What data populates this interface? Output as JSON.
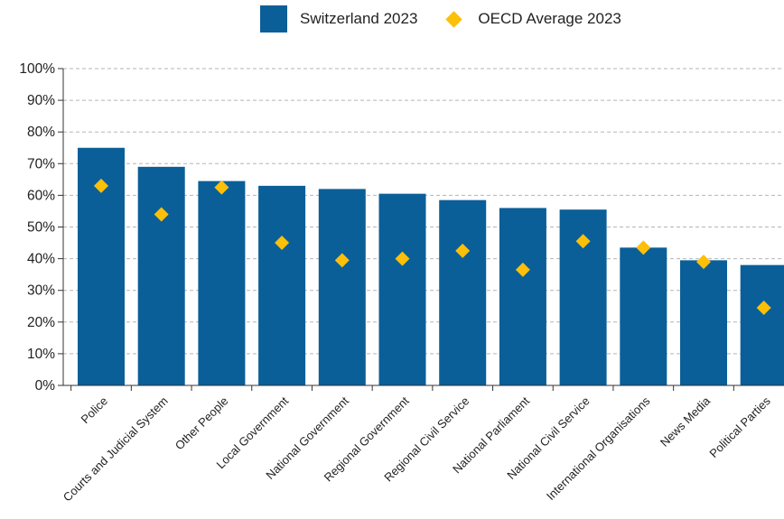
{
  "colors": {
    "bar": "#0a5f99",
    "marker": "#fcbf0a",
    "grid": "#b5b5b5",
    "axis": "#333333"
  },
  "legend": {
    "items": [
      {
        "label": "Switzerland 2023",
        "shape": "square"
      },
      {
        "label": "OECD Average 2023",
        "shape": "diamond"
      }
    ]
  },
  "chart_data": {
    "type": "bar",
    "legend_position": "top",
    "grid": true,
    "ylim": [
      0,
      100
    ],
    "y_ticks": [
      0,
      10,
      20,
      30,
      40,
      50,
      60,
      70,
      80,
      90,
      100
    ],
    "y_tick_labels": [
      "0%",
      "10%",
      "20%",
      "30%",
      "40%",
      "50%",
      "60%",
      "70%",
      "80%",
      "90%",
      "100%"
    ],
    "categories": [
      "Police",
      "Courts and Judicial System",
      "Other People",
      "Local Government",
      "National Government",
      "Regional Government",
      "Regional Civil Service",
      "National Parliament",
      "National Civil Service",
      "International Organisations",
      "News Media",
      "Political Parties"
    ],
    "series": [
      {
        "name": "Switzerland 2023",
        "kind": "bar",
        "values": [
          75,
          69,
          64.5,
          63,
          62,
          60.5,
          58.5,
          56,
          55.5,
          43.5,
          39.5,
          38
        ]
      },
      {
        "name": "OECD Average 2023",
        "kind": "marker",
        "values": [
          63,
          54,
          62.5,
          45,
          39.5,
          40,
          42.5,
          36.5,
          45.5,
          43.5,
          39,
          24.5
        ]
      }
    ]
  }
}
